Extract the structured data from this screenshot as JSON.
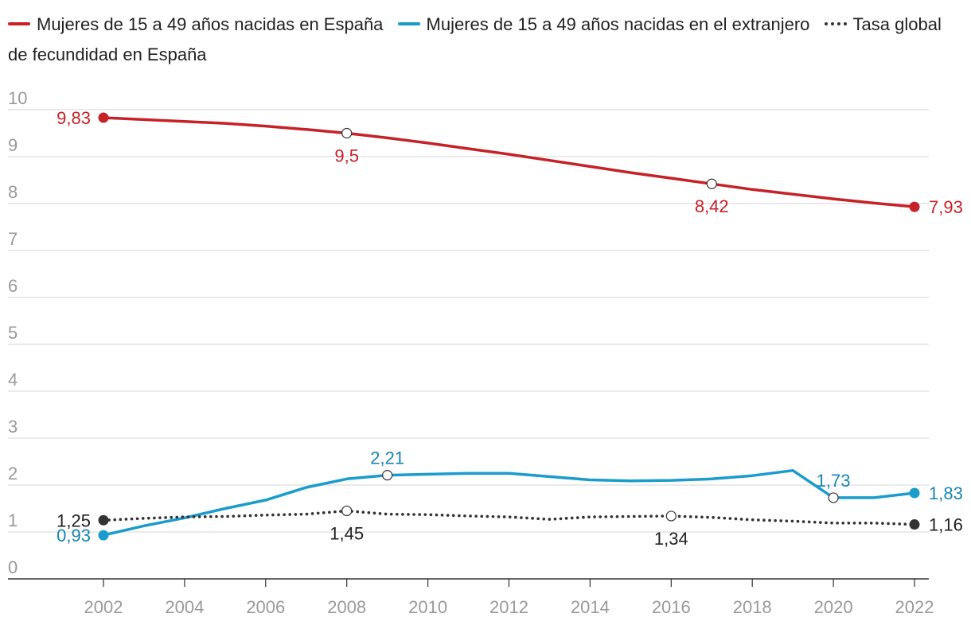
{
  "chart_data": {
    "type": "line",
    "title": "",
    "xlabel": "",
    "ylabel": "",
    "ylim": [
      0,
      10
    ],
    "xlim": [
      2000,
      2022.4
    ],
    "yticks": [
      "0",
      "1",
      "2",
      "3",
      "4",
      "5",
      "6",
      "7",
      "8",
      "9",
      "10"
    ],
    "xticks": [
      "2002",
      "2004",
      "2006",
      "2008",
      "2010",
      "2012",
      "2014",
      "2016",
      "2018",
      "2020",
      "2022"
    ],
    "grid": true,
    "legend_position": "top",
    "series": [
      {
        "name": "Mujeres de 15 a 49 años nacidas en España",
        "color": "#c62127",
        "style": "solid",
        "x": [
          2002,
          2003,
          2004,
          2005,
          2006,
          2007,
          2008,
          2009,
          2010,
          2011,
          2012,
          2013,
          2014,
          2015,
          2016,
          2017,
          2018,
          2019,
          2020,
          2021,
          2022
        ],
        "values": [
          9.83,
          9.79,
          9.75,
          9.71,
          9.65,
          9.58,
          9.5,
          9.4,
          9.29,
          9.17,
          9.05,
          8.92,
          8.79,
          8.66,
          8.54,
          8.42,
          8.3,
          8.2,
          8.1,
          8.01,
          7.93
        ],
        "labels": [
          {
            "x": 2002,
            "y": 9.83,
            "text": "9,83",
            "pos": "left",
            "marker": "filled"
          },
          {
            "x": 2008,
            "y": 9.5,
            "text": "9,5",
            "pos": "below",
            "marker": "open"
          },
          {
            "x": 2017,
            "y": 8.42,
            "text": "8,42",
            "pos": "below",
            "marker": "open"
          },
          {
            "x": 2022,
            "y": 7.93,
            "text": "7,93",
            "pos": "right",
            "marker": "filled"
          }
        ]
      },
      {
        "name": "Mujeres de 15 a 49 años nacidas en el extranjero",
        "color": "#1a9ccc",
        "style": "solid",
        "x": [
          2002,
          2003,
          2004,
          2005,
          2006,
          2007,
          2008,
          2009,
          2010,
          2011,
          2012,
          2013,
          2014,
          2015,
          2016,
          2017,
          2018,
          2019,
          2020,
          2021,
          2022
        ],
        "values": [
          0.93,
          1.13,
          1.3,
          1.5,
          1.68,
          1.95,
          2.13,
          2.21,
          2.23,
          2.25,
          2.25,
          2.18,
          2.11,
          2.09,
          2.1,
          2.13,
          2.2,
          2.31,
          1.73,
          1.73,
          1.83
        ],
        "labels": [
          {
            "x": 2002,
            "y": 0.93,
            "text": "0,93",
            "pos": "left",
            "marker": "filled"
          },
          {
            "x": 2009,
            "y": 2.21,
            "text": "2,21",
            "pos": "above",
            "marker": "open"
          },
          {
            "x": 2020,
            "y": 1.73,
            "text": "1,73",
            "pos": "above",
            "marker": "open"
          },
          {
            "x": 2022,
            "y": 1.83,
            "text": "1,83",
            "pos": "right",
            "marker": "filled"
          }
        ]
      },
      {
        "name": "Tasa global de fecundidad en España",
        "color": "#333333",
        "style": "dotted",
        "x": [
          2002,
          2003,
          2004,
          2005,
          2006,
          2007,
          2008,
          2009,
          2010,
          2011,
          2012,
          2013,
          2014,
          2015,
          2016,
          2017,
          2018,
          2019,
          2020,
          2021,
          2022
        ],
        "values": [
          1.25,
          1.29,
          1.32,
          1.33,
          1.36,
          1.38,
          1.45,
          1.38,
          1.37,
          1.34,
          1.32,
          1.27,
          1.32,
          1.33,
          1.34,
          1.31,
          1.26,
          1.23,
          1.19,
          1.19,
          1.16
        ],
        "labels": [
          {
            "x": 2002,
            "y": 1.25,
            "text": "1,25",
            "pos": "left",
            "marker": "filled"
          },
          {
            "x": 2008,
            "y": 1.45,
            "text": "1,45",
            "pos": "below",
            "marker": "open"
          },
          {
            "x": 2016,
            "y": 1.34,
            "text": "1,34",
            "pos": "below",
            "marker": "open"
          },
          {
            "x": 2022,
            "y": 1.16,
            "text": "1,16",
            "pos": "right",
            "marker": "filled"
          }
        ]
      }
    ]
  }
}
